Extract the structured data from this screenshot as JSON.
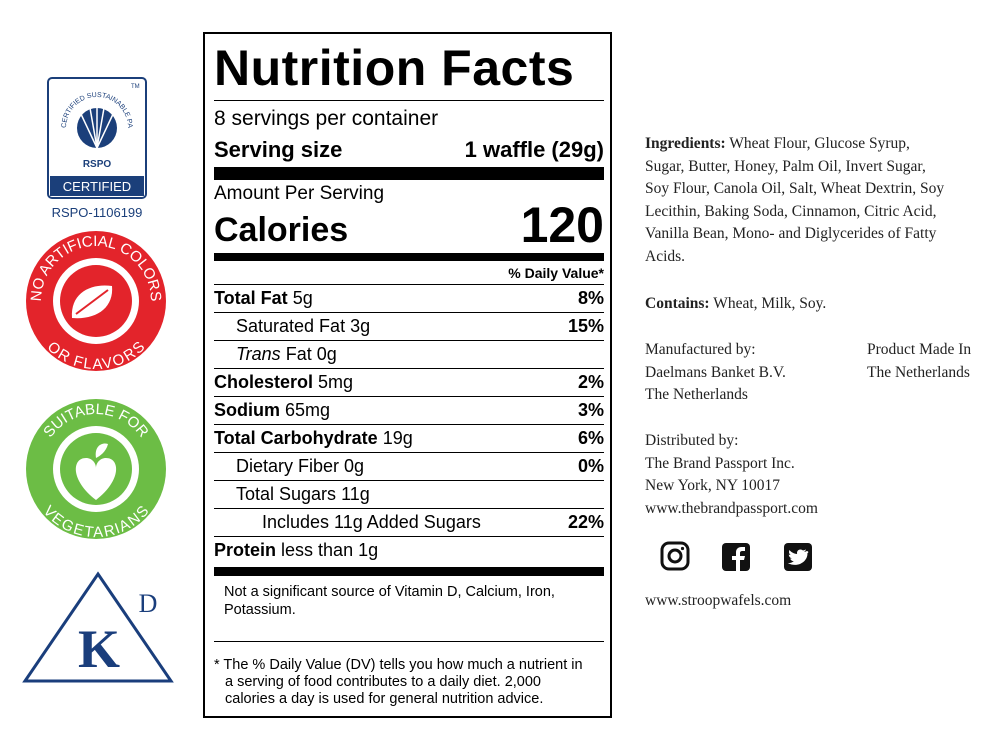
{
  "badges": {
    "rspo": {
      "arc_text": "CERTIFIED SUSTAINABLE PALM OIL",
      "tm": "TM",
      "brand": "RSPO",
      "status": "CERTIFIED",
      "code": "RSPO-1106199"
    },
    "no_artificial": {
      "top": "NO ARTIFICIAL COLORS",
      "bottom": "OR FLAVORS"
    },
    "vegetarian": {
      "top": "SUITABLE FOR",
      "bottom": "VEGETARIANS"
    },
    "kosher": {
      "letter": "K",
      "mark": "D"
    }
  },
  "nutrition": {
    "title": "Nutrition Facts",
    "servings": "8 servings per container",
    "serving_size_label": "Serving size",
    "serving_size": "1 waffle (29g)",
    "amount_per_serving": "Amount Per Serving",
    "calories_label": "Calories",
    "calories": "120",
    "dv_header": "% Daily Value*",
    "rows": [
      {
        "label": "Total Fat",
        "amount": "5g",
        "dv": "8%",
        "bold": true,
        "indent": 0
      },
      {
        "label": "Saturated Fat",
        "amount": "3g",
        "dv": "15%",
        "bold": false,
        "indent": 1
      },
      {
        "prefix": "Trans",
        "label": "Fat",
        "amount": "0g",
        "bold": false,
        "indent": 1
      },
      {
        "label": "Cholesterol",
        "amount": "5mg",
        "dv": "2%",
        "bold": true,
        "indent": 0
      },
      {
        "label": "Sodium",
        "amount": "65mg",
        "dv": "3%",
        "bold": true,
        "indent": 0
      },
      {
        "label": "Total Carbohydrate",
        "amount": "19g",
        "dv": "6%",
        "bold": true,
        "indent": 0
      },
      {
        "label": "Dietary Fiber",
        "amount": "0g",
        "dv": "0%",
        "bold": false,
        "indent": 1
      },
      {
        "label": "Total Sugars",
        "amount": "11g",
        "bold": false,
        "indent": 1
      },
      {
        "label": "Includes 11g Added Sugars",
        "dv": "22%",
        "bold": false,
        "indent": 2
      },
      {
        "label": "Protein",
        "amount": "less than 1g",
        "bold": true,
        "indent": 0
      }
    ],
    "vitamins_note": "Not a significant source of Vitamin D, Calcium, Iron, Potassium.",
    "dv_note": "* The % Daily Value (DV) tells you how much a nutrient in a serving of food contributes to a daily diet. 2,000 calories a day is used for general nutrition advice."
  },
  "info": {
    "ingredients_label": "Ingredients:",
    "ingredients": "Wheat Flour, Glucose Syrup, Sugar, Butter, Honey, Palm Oil, Invert Sugar, Soy Flour, Canola Oil, Salt, Wheat Dextrin, Soy Lecithin, Baking Soda, Cinnamon, Citric Acid, Vanilla Bean, Mono- and Diglycerides of Fatty Acids.",
    "contains_label": "Contains:",
    "contains": "Wheat, Milk, Soy.",
    "manufacturer": [
      "Manufactured by:",
      "Daelmans Banket B.V.",
      "The Netherlands"
    ],
    "origin": [
      "Product Made In",
      "The Netherlands"
    ],
    "distributor": [
      "Distributed by:",
      "The Brand Passport Inc.",
      "New York, NY 10017",
      "www.thebrandpassport.com"
    ],
    "website": "www.stroopwafels.com"
  }
}
